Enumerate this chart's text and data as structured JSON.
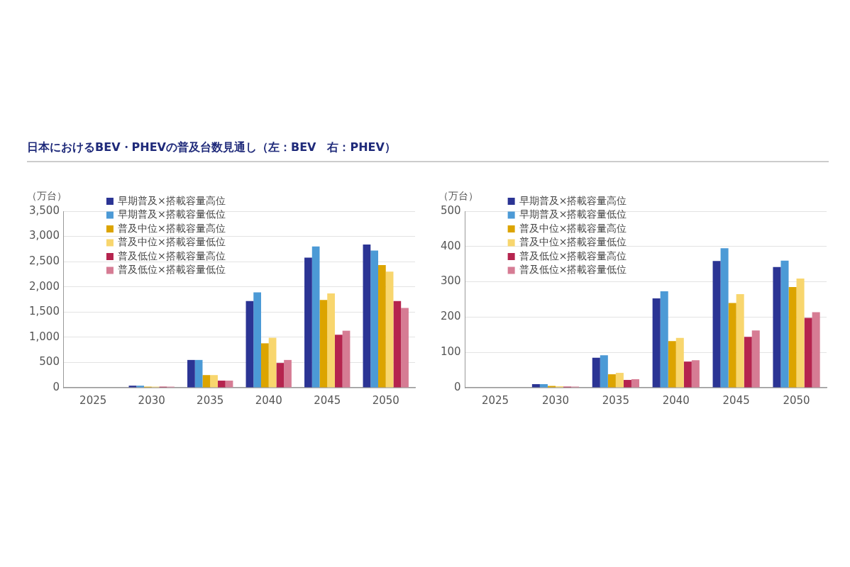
{
  "chart_data": [
    {
      "type": "bar",
      "title": "日本におけるBEV・PHEVの普及台数見通し（左：BEV　右：PHEV）",
      "ylabel": "（万台）",
      "categories": [
        "2025",
        "2030",
        "2035",
        "2040",
        "2045",
        "2050"
      ],
      "ylim": [
        0,
        3500
      ],
      "yticks": [
        {
          "value": 0,
          "label": "0"
        },
        {
          "value": 500,
          "label": "500"
        },
        {
          "value": 1000,
          "label": "1,000"
        },
        {
          "value": 1500,
          "label": "1,500"
        },
        {
          "value": 2000,
          "label": "2,000"
        },
        {
          "value": 2500,
          "label": "2,500"
        },
        {
          "value": 3000,
          "label": "3,000"
        },
        {
          "value": 3500,
          "label": "3,500"
        }
      ],
      "grid": "y",
      "legend": "top left",
      "series": [
        {
          "name": "早期普及×搭載容量高位",
          "color": "#2b3494",
          "values": [
            0,
            40,
            550,
            1720,
            2580,
            2840
          ]
        },
        {
          "name": "早期普及×搭載容量低位",
          "color": "#4c9ad6",
          "values": [
            0,
            40,
            550,
            1890,
            2800,
            2720
          ]
        },
        {
          "name": "普及中位×搭載容量高位",
          "color": "#dca400",
          "values": [
            0,
            20,
            250,
            880,
            1740,
            2430
          ]
        },
        {
          "name": "普及中位×搭載容量低位",
          "color": "#f8d66e",
          "values": [
            0,
            20,
            250,
            990,
            1870,
            2300
          ]
        },
        {
          "name": "普及低位×搭載容量高位",
          "color": "#b5244e",
          "values": [
            0,
            20,
            140,
            490,
            1050,
            1720
          ]
        },
        {
          "name": "普及低位×搭載容量低位",
          "color": "#d67c94",
          "values": [
            0,
            20,
            140,
            550,
            1130,
            1580
          ]
        }
      ]
    },
    {
      "type": "bar",
      "ylabel": "（万台）",
      "categories": [
        "2025",
        "2030",
        "2035",
        "2040",
        "2045",
        "2050"
      ],
      "ylim": [
        0,
        500
      ],
      "yticks": [
        0,
        100,
        200,
        300,
        400,
        500
      ],
      "grid": "y",
      "legend": "top left",
      "series": [
        {
          "name": "早期普及×搭載容量高位",
          "color": "#2b3494",
          "values": [
            0,
            10,
            85,
            253,
            359,
            342
          ]
        },
        {
          "name": "早期普及×搭載容量低位",
          "color": "#4c9ad6",
          "values": [
            0,
            10,
            92,
            273,
            395,
            360
          ]
        },
        {
          "name": "普及中位×搭載容量高位",
          "color": "#dca400",
          "values": [
            0,
            5,
            38,
            132,
            240,
            285
          ]
        },
        {
          "name": "普及中位×搭載容量低位",
          "color": "#f8d66e",
          "values": [
            0,
            4,
            42,
            141,
            265,
            309
          ]
        },
        {
          "name": "普及低位×搭載容量高位",
          "color": "#b5244e",
          "values": [
            0,
            3,
            22,
            74,
            144,
            198
          ]
        },
        {
          "name": "普及低位×搭載容量低位",
          "color": "#d67c94",
          "values": [
            0,
            3,
            24,
            78,
            162,
            214
          ]
        }
      ]
    }
  ]
}
